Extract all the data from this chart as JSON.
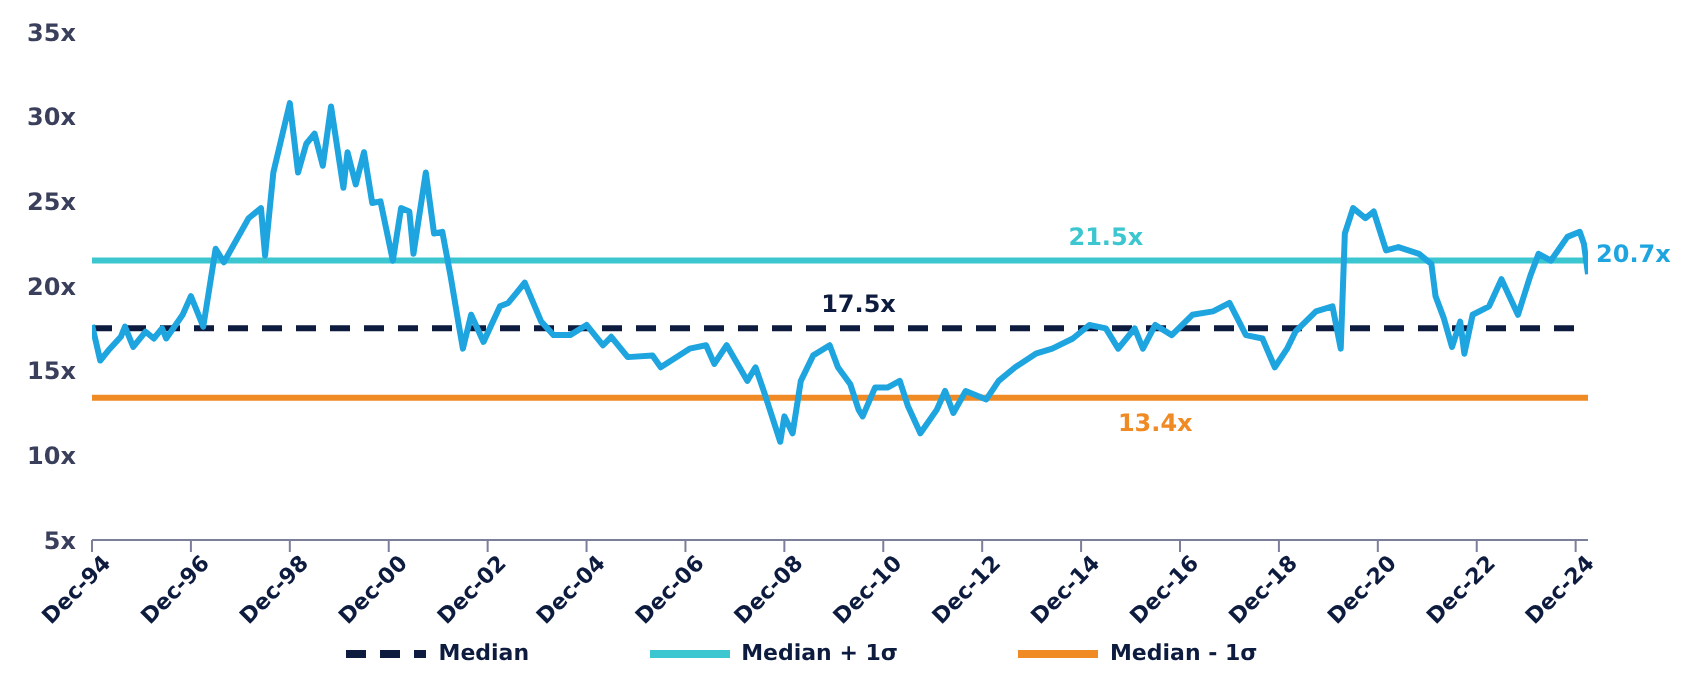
{
  "chart_data": {
    "type": "line",
    "x": [
      "1994-12",
      "1995-02",
      "1995-04",
      "1995-07",
      "1995-08",
      "1995-10",
      "1996-01",
      "1996-03",
      "1996-05",
      "1996-06",
      "1996-10",
      "1996-12",
      "1997-03",
      "1997-06",
      "1997-08",
      "1997-11",
      "1998-02",
      "1998-05",
      "1998-06",
      "1998-08",
      "1998-12",
      "1999-02",
      "1999-04",
      "1999-06",
      "1999-08",
      "1999-10",
      "2000-01",
      "2000-02",
      "2000-04",
      "2000-06",
      "2000-08",
      "2000-10",
      "2001-01",
      "2001-03",
      "2001-05",
      "2001-06",
      "2001-09",
      "2001-11",
      "2002-01",
      "2002-03",
      "2002-05",
      "2002-06",
      "2002-08",
      "2002-11",
      "2003-03",
      "2003-05",
      "2003-07",
      "2003-09",
      "2004-01",
      "2004-04",
      "2004-08",
      "2004-12",
      "2005-04",
      "2005-06",
      "2005-10",
      "2006-04",
      "2006-06",
      "2007-01",
      "2007-05",
      "2007-07",
      "2007-10",
      "2008-03",
      "2008-05",
      "2008-07",
      "2008-11",
      "2008-12",
      "2009-02",
      "2009-04",
      "2009-07",
      "2009-11",
      "2010-01",
      "2010-04",
      "2010-06",
      "2010-07",
      "2010-10",
      "2011-01",
      "2011-04",
      "2011-06",
      "2011-09",
      "2012-01",
      "2012-03",
      "2012-05",
      "2012-08",
      "2013-01",
      "2013-04",
      "2013-08",
      "2014-01",
      "2014-05",
      "2014-10",
      "2015-02",
      "2015-06",
      "2015-09",
      "2016-01",
      "2016-03",
      "2016-06",
      "2016-10",
      "2017-03",
      "2017-08",
      "2017-12",
      "2018-04",
      "2018-08",
      "2018-11",
      "2019-02",
      "2019-04",
      "2019-09",
      "2020-01",
      "2020-03",
      "2020-04",
      "2020-06",
      "2020-09",
      "2020-11",
      "2021-02",
      "2021-05",
      "2021-10",
      "2022-01",
      "2022-02",
      "2022-04",
      "2022-06",
      "2022-08",
      "2022-09",
      "2022-11",
      "2023-03",
      "2023-06",
      "2023-10",
      "2024-01",
      "2024-03",
      "2024-06",
      "2024-10",
      "2025-01",
      "2025-02",
      "2025-03"
    ],
    "series": [
      {
        "color": "#1ea5e0",
        "values": [
          17.7,
          15.6,
          16.2,
          17.0,
          17.6,
          16.4,
          17.3,
          16.9,
          17.5,
          16.9,
          18.3,
          19.4,
          17.6,
          22.2,
          21.4,
          22.7,
          24.0,
          24.6,
          21.8,
          26.7,
          30.8,
          26.7,
          28.4,
          29.0,
          27.1,
          30.6,
          25.8,
          27.9,
          26.0,
          27.9,
          24.9,
          25.0,
          21.5,
          24.6,
          24.4,
          21.9,
          26.7,
          23.1,
          23.2,
          20.6,
          17.7,
          16.3,
          18.3,
          16.7,
          18.8,
          19.0,
          19.6,
          20.2,
          17.9,
          17.1,
          17.1,
          17.7,
          16.5,
          17.0,
          15.8,
          15.9,
          15.2,
          16.3,
          16.5,
          15.4,
          16.5,
          14.4,
          15.2,
          13.8,
          10.8,
          12.3,
          11.3,
          14.4,
          15.9,
          16.5,
          15.2,
          14.2,
          12.7,
          12.3,
          14.0,
          14.0,
          14.4,
          12.9,
          11.3,
          12.7,
          13.8,
          12.5,
          13.8,
          13.3,
          14.4,
          15.2,
          16.0,
          16.3,
          16.9,
          17.7,
          17.5,
          16.3,
          17.5,
          16.3,
          17.7,
          17.1,
          18.3,
          18.5,
          19.0,
          17.1,
          16.9,
          15.2,
          16.3,
          17.3,
          18.5,
          18.8,
          16.3,
          23.1,
          24.6,
          24.0,
          24.4,
          22.1,
          22.3,
          21.9,
          21.3,
          19.4,
          18.1,
          16.4,
          17.9,
          16.0,
          18.3,
          18.8,
          20.4,
          18.3,
          20.6,
          21.9,
          21.5,
          22.9,
          23.2,
          22.5,
          20.7
        ],
        "value_labels": [
          null,
          null,
          null,
          null,
          null,
          null,
          null,
          null,
          null,
          null,
          null,
          null,
          null,
          null,
          null,
          null,
          null,
          null,
          null,
          null,
          null,
          null,
          null,
          null,
          null,
          null,
          null,
          null,
          null,
          null,
          null,
          null,
          null,
          null,
          null,
          null,
          null,
          null,
          null,
          null,
          null,
          null,
          null,
          null,
          null,
          null,
          null,
          null,
          null,
          null,
          null,
          null,
          null,
          null,
          null,
          null,
          null,
          null,
          null,
          null,
          null,
          null,
          null,
          null,
          null,
          null,
          null,
          null,
          null,
          null,
          null,
          null,
          null,
          null,
          null,
          null,
          null,
          null,
          null,
          null,
          null,
          null,
          null,
          null,
          null,
          null,
          null,
          null,
          null,
          null,
          null,
          null,
          null,
          null,
          null,
          null,
          null,
          null,
          null,
          null,
          null,
          null,
          null,
          null,
          null,
          null,
          null,
          null,
          null,
          null,
          null,
          null,
          null,
          null,
          null,
          null,
          null,
          null,
          null,
          null,
          null,
          null,
          null,
          null,
          null,
          null,
          null,
          null,
          null,
          null,
          "20.7x"
        ]
      }
    ],
    "ref_lines": [
      {
        "axis": "y",
        "value": 17.5,
        "label": "Median",
        "color": "#0d1b3e",
        "line_style": "dashed"
      },
      {
        "axis": "y",
        "value": 21.5,
        "label": "Median + 1σ",
        "color": "#3cc6d0",
        "line_style": "solid"
      },
      {
        "axis": "y",
        "value": 13.4,
        "label": "Median - 1σ",
        "color": "#f08a24",
        "line_style": "solid"
      }
    ],
    "annotations": [
      {
        "text": "17.5x",
        "x": "2010-06",
        "y": 17.5
      },
      {
        "text": "21.5x",
        "x": "2015-06",
        "y": 21.5
      },
      {
        "text": "13.4x",
        "x": "2016-06",
        "y": 13.4
      }
    ],
    "xlim": [
      "1994-12",
      "2025-03"
    ],
    "xticks": [
      {
        "value": "1994-12",
        "label": "Dec-94"
      },
      {
        "value": "1996-12",
        "label": "Dec-96"
      },
      {
        "value": "1998-12",
        "label": "Dec-98"
      },
      {
        "value": "2000-12",
        "label": "Dec-00"
      },
      {
        "value": "2002-12",
        "label": "Dec-02"
      },
      {
        "value": "2004-12",
        "label": "Dec-04"
      },
      {
        "value": "2006-12",
        "label": "Dec-06"
      },
      {
        "value": "2008-12",
        "label": "Dec-08"
      },
      {
        "value": "2010-12",
        "label": "Dec-10"
      },
      {
        "value": "2012-12",
        "label": "Dec-12"
      },
      {
        "value": "2014-12",
        "label": "Dec-14"
      },
      {
        "value": "2016-12",
        "label": "Dec-16"
      },
      {
        "value": "2018-12",
        "label": "Dec-18"
      },
      {
        "value": "2020-12",
        "label": "Dec-20"
      },
      {
        "value": "2022-12",
        "label": "Dec-22"
      },
      {
        "value": "2024-12",
        "label": "Dec-24"
      }
    ],
    "ylim": [
      5,
      35
    ],
    "yticks": [
      {
        "value": 5,
        "label": "5x"
      },
      {
        "value": 10,
        "label": "10x"
      },
      {
        "value": 15,
        "label": "15x"
      },
      {
        "value": 20,
        "label": "20x"
      },
      {
        "value": 25,
        "label": "25x"
      },
      {
        "value": 30,
        "label": "30x"
      },
      {
        "value": 35,
        "label": "35x"
      }
    ],
    "grid": false,
    "legend": "bottom",
    "marker": "none",
    "line_style": "solid"
  }
}
